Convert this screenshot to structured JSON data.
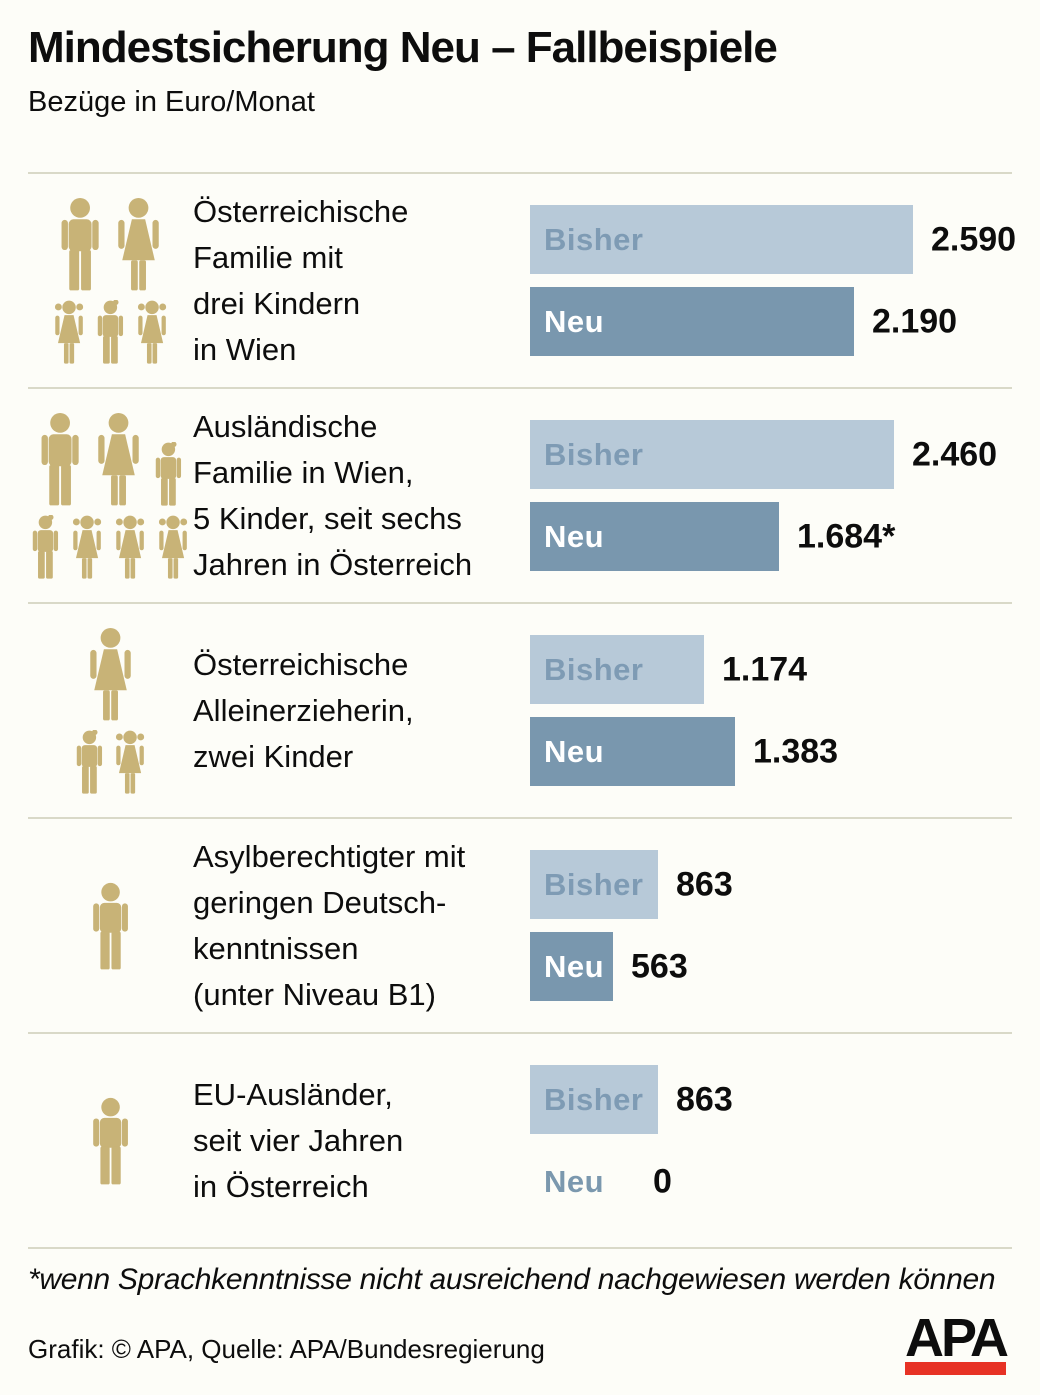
{
  "title": "Mindestsicherung Neu – Fallbeispiele",
  "subtitle": "Bezüge in Euro/Monat",
  "bar_labels": {
    "bisher": "Bisher",
    "neu": "Neu"
  },
  "colors": {
    "background": "#fdfdf8",
    "divider": "#d9d9c8",
    "bar_bisher": "#b7c9d8",
    "bar_neu": "#7997ae",
    "bisher_label_text": "#7e9bb4",
    "neu_label_no_bar": "#7b98ae",
    "icon": "#c8b377",
    "logo_red": "#e73225"
  },
  "chart_data": {
    "type": "bar",
    "orientation": "horizontal",
    "title": "Mindestsicherung Neu – Fallbeispiele",
    "unit_label": "Bezüge in Euro/Monat",
    "series_labels": [
      "Bisher",
      "Neu"
    ],
    "x_max_for_scale": 2590,
    "rows": [
      {
        "case": "Österreichische Familie mit drei Kindern in Wien",
        "case_lines": [
          "Österreichische",
          "Familie mit",
          "drei Kindern",
          "in Wien"
        ],
        "icons": [
          [
            "man",
            "woman"
          ],
          [
            "girl",
            "boy",
            "girl"
          ]
        ],
        "values": {
          "bisher": 2590,
          "neu": 2190
        },
        "display": {
          "bisher": "2.590",
          "neu": "2.190"
        }
      },
      {
        "case": "Ausländische Familie in Wien, 5 Kinder, seit sechs Jahren in Österreich",
        "case_lines": [
          "Ausländische",
          "Familie in Wien,",
          "5 Kinder, seit sechs",
          "Jahren in Österreich"
        ],
        "icons": [
          [
            "man",
            "woman",
            "boy"
          ],
          [
            "boy",
            "girl",
            "girl",
            "girl"
          ]
        ],
        "values": {
          "bisher": 2460,
          "neu": 1684
        },
        "display": {
          "bisher": "2.460",
          "neu": "1.684*"
        }
      },
      {
        "case": "Österreichische Alleinerzieherin, zwei Kinder",
        "case_lines": [
          "Österreichische",
          "Alleinerzieherin,",
          "zwei Kinder"
        ],
        "icons": [
          [
            "woman"
          ],
          [
            "boy",
            "girl"
          ]
        ],
        "values": {
          "bisher": 1174,
          "neu": 1383
        },
        "display": {
          "bisher": "1.174",
          "neu": "1.383"
        }
      },
      {
        "case": "Asylberechtigter mit geringen Deutschkenntnissen (unter Niveau B1)",
        "case_lines": [
          "Asylberechtigter mit",
          "geringen Deutsch-",
          "kenntnissen",
          "(unter Niveau B1)"
        ],
        "icons": [
          [
            "man"
          ]
        ],
        "values": {
          "bisher": 863,
          "neu": 563
        },
        "display": {
          "bisher": "863",
          "neu": "563"
        }
      },
      {
        "case": "EU-Ausländer, seit vier Jahren in Österreich",
        "case_lines": [
          "EU-Ausländer,",
          "seit vier Jahren",
          "in Österreich"
        ],
        "icons": [
          [
            "man"
          ]
        ],
        "values": {
          "bisher": 863,
          "neu": 0
        },
        "display": {
          "bisher": "863",
          "neu": "0"
        }
      }
    ]
  },
  "footnote": "*wenn Sprachkenntnisse nicht ausreichend nachgewiesen werden können",
  "credit": "Grafik: © APA, Quelle: APA/Bundesregierung",
  "logo": {
    "text": "APA"
  }
}
